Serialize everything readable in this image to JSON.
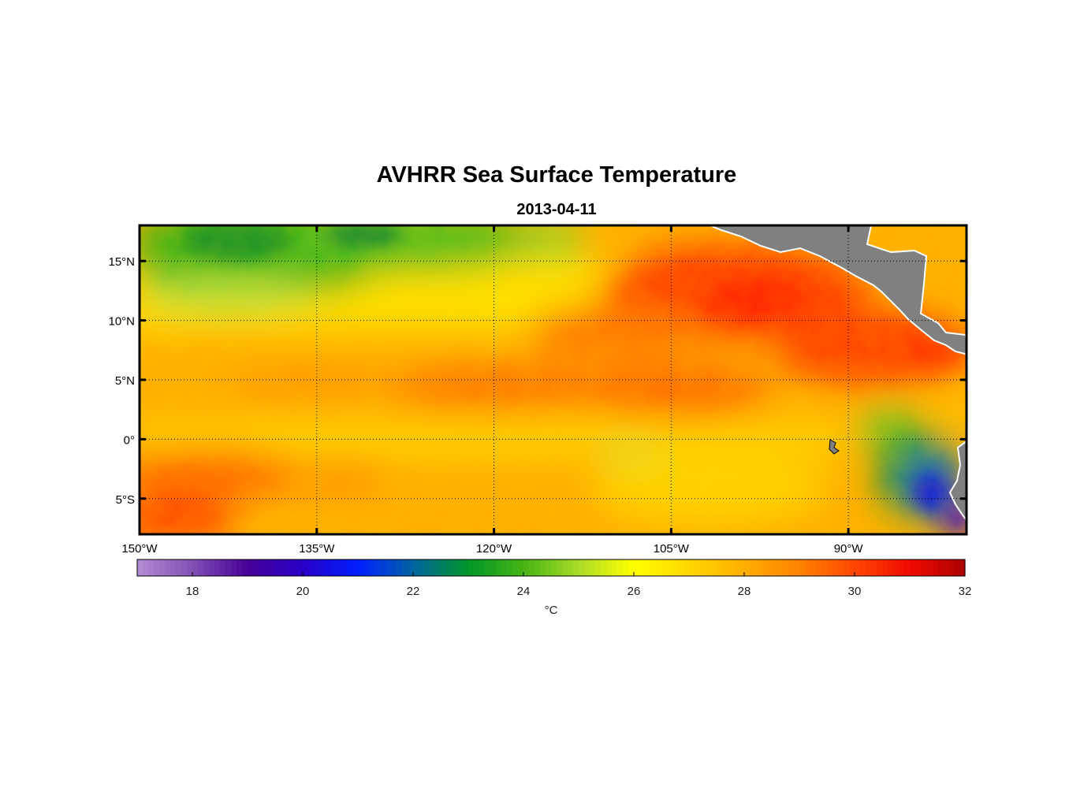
{
  "title": "AVHRR Sea Surface Temperature",
  "subtitle": "2013-04-11",
  "map": {
    "lon_range": [
      -150,
      -80
    ],
    "lat_range": [
      -8,
      18
    ],
    "lat_ticks": [
      {
        "value": 15,
        "label": "15°N"
      },
      {
        "value": 10,
        "label": "10°N"
      },
      {
        "value": 5,
        "label": "5°N"
      },
      {
        "value": 0,
        "label": "0°"
      },
      {
        "value": -5,
        "label": "5°S"
      }
    ],
    "lon_ticks": [
      {
        "value": -150,
        "label": "150°W"
      },
      {
        "value": -135,
        "label": "135°W"
      },
      {
        "value": -120,
        "label": "120°W"
      },
      {
        "value": -105,
        "label": "105°W"
      },
      {
        "value": -90,
        "label": "90°W"
      }
    ],
    "gridlines": "dotted",
    "land_color": "#808080"
  },
  "colorbar": {
    "range": [
      17,
      32
    ],
    "ticks": [
      "18",
      "20",
      "22",
      "24",
      "26",
      "28",
      "30",
      "32"
    ],
    "unit": "°C"
  }
}
